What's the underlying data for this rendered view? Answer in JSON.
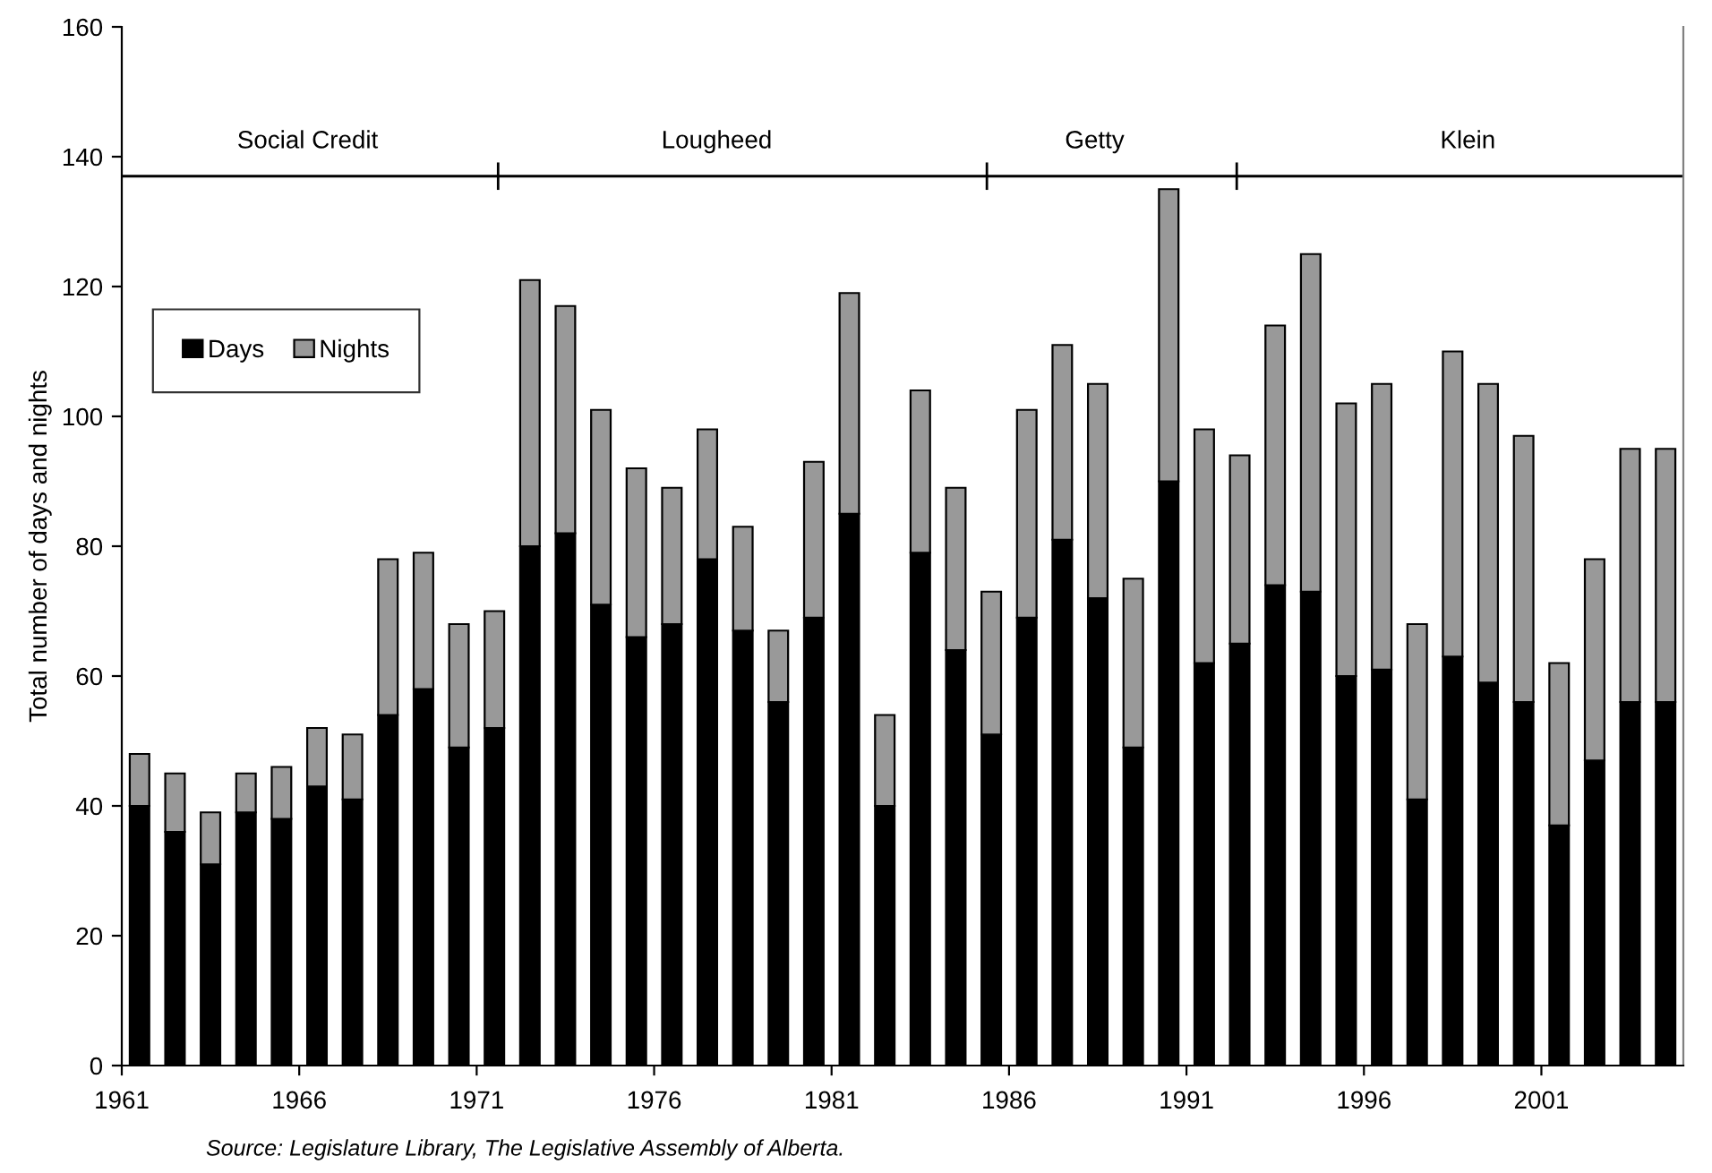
{
  "chart_data": {
    "type": "bar",
    "stacked": true,
    "ylabel": "Total number of days and nights",
    "x": [
      1961.5,
      1962.5,
      1963.5,
      1964.5,
      1965.5,
      1966.5,
      1967.5,
      1968.5,
      1969.5,
      1970.5,
      1971.5,
      1972.5,
      1973.5,
      1974.5,
      1975.5,
      1976.5,
      1977.5,
      1978.5,
      1979.5,
      1980.5,
      1981.5,
      1982.5,
      1983.5,
      1984.5,
      1985.5,
      1986.5,
      1987.5,
      1988.5,
      1989.5,
      1990.5,
      1991.5,
      1992.5,
      1993.5,
      1994.5,
      1995.5,
      1996.5,
      1997.5,
      1998.5,
      1999.5,
      2000.5,
      2001.5,
      2002.5,
      2003.5,
      2004.5
    ],
    "series": [
      {
        "name": "Days",
        "color": "#000000",
        "values": [
          40,
          36,
          31,
          39,
          38,
          43,
          41,
          54,
          58,
          49,
          52,
          80,
          82,
          71,
          66,
          68,
          78,
          67,
          56,
          69,
          85,
          40,
          79,
          64,
          51,
          69,
          81,
          72,
          49,
          90,
          62,
          65,
          74,
          73,
          60,
          61,
          41,
          63,
          59,
          56,
          37,
          47,
          56,
          56
        ]
      },
      {
        "name": "Nights",
        "color": "#999999",
        "values": [
          8,
          9,
          8,
          6,
          8,
          9,
          10,
          24,
          21,
          19,
          18,
          41,
          35,
          30,
          26,
          21,
          20,
          16,
          11,
          24,
          34,
          14,
          25,
          25,
          22,
          32,
          30,
          33,
          26,
          45,
          36,
          29,
          40,
          52,
          42,
          44,
          27,
          47,
          46,
          41,
          25,
          31,
          39,
          39
        ]
      }
    ],
    "xlim": [
      1961,
      2005
    ],
    "xticks": [
      1961,
      1966,
      1971,
      1976,
      1981,
      1986,
      1991,
      1996,
      2001
    ],
    "ylim": [
      0,
      160
    ],
    "yticks": [
      0,
      20,
      40,
      60,
      80,
      100,
      120,
      140,
      160
    ],
    "ref_lines": [
      {
        "axis": "y",
        "value": 137,
        "color": "#000000"
      }
    ],
    "legend": "top left",
    "grid": false,
    "annotations": [
      "Social Credit",
      "Lougheed",
      "Getty",
      "Klein",
      "Source: Legislature Library, The Legislative Assembly of Alberta."
    ]
  }
}
